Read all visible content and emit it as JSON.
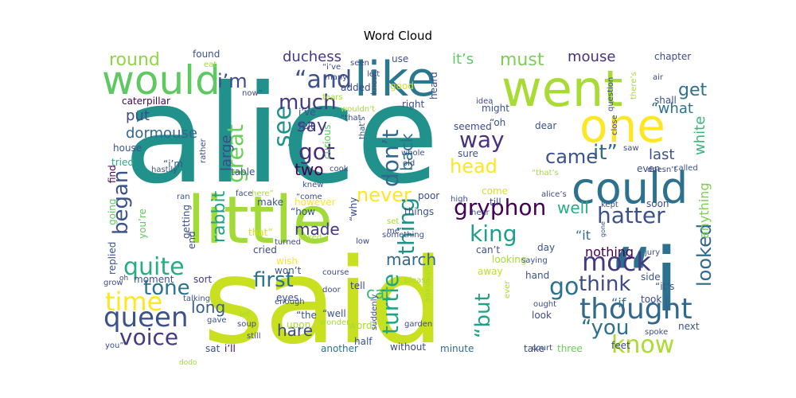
{
  "chart_data": {
    "type": "wordcloud",
    "title": "Word Cloud",
    "palette": [
      "#440154",
      "#46327e",
      "#365c8d",
      "#277f8e",
      "#1fa187",
      "#4ac16d",
      "#a0da39",
      "#d1e231",
      "#fde725"
    ],
    "words": [
      {
        "text": "alice",
        "weight": 100,
        "color": "#21918c"
      },
      {
        "text": "said",
        "weight": 90,
        "color": "#c8e020"
      },
      {
        "text": "little",
        "weight": 55,
        "color": "#a2da37"
      },
      {
        "text": "“i",
        "weight": 52,
        "color": "#2c728e"
      },
      {
        "text": "went",
        "weight": 42,
        "color": "#a8db34"
      },
      {
        "text": "like",
        "weight": 40,
        "color": "#2a788e"
      },
      {
        "text": "one",
        "weight": 38,
        "color": "#fde725"
      },
      {
        "text": "could",
        "weight": 36,
        "color": "#2c728e"
      },
      {
        "text": "would",
        "weight": 33,
        "color": "#5ec962"
      },
      {
        "text": "thought",
        "weight": 24,
        "color": "#31688e"
      },
      {
        "text": "queen",
        "weight": 23,
        "color": "#3b528b"
      },
      {
        "text": "know",
        "weight": 22,
        "color": "#addc30"
      },
      {
        "text": "mock",
        "weight": 21,
        "color": "#443983"
      },
      {
        "text": "time",
        "weight": 21,
        "color": "#fde725"
      },
      {
        "text": "quite",
        "weight": 21,
        "color": "#27ad81"
      },
      {
        "text": "“and",
        "weight": 20,
        "color": "#3b528b"
      },
      {
        "text": "see",
        "weight": 20,
        "color": "#21918c"
      },
      {
        "text": "got",
        "weight": 19,
        "color": "#472d7b"
      },
      {
        "text": "king",
        "weight": 19,
        "color": "#1f9e89"
      },
      {
        "text": "go",
        "weight": 19,
        "color": "#2c728e"
      },
      {
        "text": "voice",
        "weight": 19,
        "color": "#443983"
      },
      {
        "text": "“you",
        "weight": 18,
        "color": "#2c728e"
      },
      {
        "text": "hatter",
        "weight": 18,
        "color": "#3b528b"
      },
      {
        "text": "great",
        "weight": 18,
        "color": "#6ccd5a"
      },
      {
        "text": "gryphon",
        "weight": 18,
        "color": "#440154"
      },
      {
        "text": "way",
        "weight": 18,
        "color": "#46327e"
      },
      {
        "text": "turtle",
        "weight": 18,
        "color": "#20a486"
      },
      {
        "text": "thing",
        "weight": 18,
        "color": "#21918c"
      },
      {
        "text": "don’t",
        "weight": 18,
        "color": "#31688e"
      },
      {
        "text": "head",
        "weight": 17,
        "color": "#fde725"
      },
      {
        "text": "first",
        "weight": 17,
        "color": "#2c728e"
      },
      {
        "text": "think",
        "weight": 17,
        "color": "#3e4a89"
      },
      {
        "text": "“but",
        "weight": 17,
        "color": "#1fa187"
      },
      {
        "text": "it”",
        "weight": 16,
        "color": "#30698e"
      },
      {
        "text": "looked",
        "weight": 16,
        "color": "#31688e"
      },
      {
        "text": "tone",
        "weight": 16,
        "color": "#2c728e"
      },
      {
        "text": "began",
        "weight": 16,
        "color": "#3b528b"
      },
      {
        "text": "much",
        "weight": 16,
        "color": "#443983"
      },
      {
        "text": "came",
        "weight": 15,
        "color": "#3b528b"
      },
      {
        "text": "never",
        "weight": 15,
        "color": "#fde725"
      },
      {
        "text": "must",
        "weight": 15,
        "color": "#7ad151"
      },
      {
        "text": "round",
        "weight": 15,
        "color": "#90d743"
      },
      {
        "text": "say",
        "weight": 15,
        "color": "#443983"
      },
      {
        "text": "rabbit",
        "weight": 15,
        "color": "#20a486"
      },
      {
        "text": "get",
        "weight": 14,
        "color": "#2c728e"
      },
      {
        "text": "i’m",
        "weight": 14,
        "color": "#3e4a89"
      },
      {
        "text": "dormouse",
        "weight": 13,
        "color": "#31688e"
      },
      {
        "text": "put",
        "weight": 13,
        "color": "#3e4a89"
      },
      {
        "text": "well",
        "weight": 13,
        "color": "#27ad81"
      },
      {
        "text": "cat",
        "weight": 13,
        "color": "#35b779"
      },
      {
        "text": "made",
        "weight": 13,
        "color": "#443983"
      },
      {
        "text": "march",
        "weight": 13,
        "color": "#31688e"
      },
      {
        "text": "hare",
        "weight": 13,
        "color": "#3e4a89"
      },
      {
        "text": "long",
        "weight": 13,
        "color": "#355f8d"
      },
      {
        "text": "two",
        "weight": 13,
        "color": "#440154"
      },
      {
        "text": "back",
        "weight": 13,
        "color": "#2c728e"
      },
      {
        "text": "white",
        "weight": 13,
        "color": "#35b779"
      },
      {
        "text": "“what",
        "weight": 13,
        "color": "#2c728e"
      },
      {
        "text": "duchess",
        "weight": 12,
        "color": "#443983"
      },
      {
        "text": "mouse",
        "weight": 12,
        "color": "#46327e"
      },
      {
        "text": "large",
        "weight": 12,
        "color": "#3e4a89"
      },
      {
        "text": "last",
        "weight": 12,
        "color": "#3b528b"
      },
      {
        "text": "it’s",
        "weight": 12,
        "color": "#5ec962"
      },
      {
        "text": "anything",
        "weight": 12,
        "color": "#7ad151"
      },
      {
        "text": "nothing",
        "weight": 12,
        "color": "#440154"
      },
      {
        "text": "“it",
        "weight": 12,
        "color": "#31688e"
      },
      {
        "text": "“if",
        "weight": 11,
        "color": "#2c728e"
      },
      {
        "text": "chapter",
        "weight": 9,
        "color": "#3e4a89"
      },
      {
        "text": "caterpillar",
        "weight": 9,
        "color": "#440154"
      },
      {
        "text": "found",
        "weight": 9,
        "color": "#3b528b"
      },
      {
        "text": "house",
        "weight": 9,
        "color": "#3b528b"
      },
      {
        "text": "tried",
        "weight": 9,
        "color": "#27ad81"
      },
      {
        "text": "going",
        "weight": 9,
        "color": "#5ec962"
      },
      {
        "text": "find",
        "weight": 9,
        "color": "#440154"
      },
      {
        "text": "replied",
        "weight": 9,
        "color": "#3b528b"
      },
      {
        "text": "moment",
        "weight": 9,
        "color": "#3b528b"
      },
      {
        "text": "sort",
        "weight": 9,
        "color": "#443983"
      },
      {
        "text": "talking",
        "weight": 9,
        "color": "#3b528b"
      },
      {
        "text": "sat",
        "weight": 9,
        "color": "#3b528b"
      },
      {
        "text": "i’ll",
        "weight": 9,
        "color": "#440154"
      },
      {
        "text": "another",
        "weight": 9,
        "color": "#2c728e"
      },
      {
        "text": "without",
        "weight": 9,
        "color": "#3e4a89"
      },
      {
        "text": "minute",
        "weight": 9,
        "color": "#31688e"
      },
      {
        "text": "take",
        "weight": 9,
        "color": "#3e4a89"
      },
      {
        "text": "three",
        "weight": 9,
        "color": "#6ccd5a"
      },
      {
        "text": "feet",
        "weight": 9,
        "color": "#3e4a89"
      },
      {
        "text": "next",
        "weight": 9,
        "color": "#3b528b"
      },
      {
        "text": "took",
        "weight": 9,
        "color": "#3e4a89"
      },
      {
        "text": "side",
        "weight": 9,
        "color": "#3b528b"
      },
      {
        "text": "day",
        "weight": 9,
        "color": "#3b528b"
      },
      {
        "text": "looking",
        "weight": 9,
        "color": "#a8db34"
      },
      {
        "text": "things",
        "weight": 9,
        "color": "#3b528b"
      },
      {
        "text": "can’t",
        "weight": 9,
        "color": "#3b528b"
      },
      {
        "text": "away",
        "weight": 9,
        "color": "#bddf26"
      },
      {
        "text": "hand",
        "weight": 9,
        "color": "#3b528b"
      },
      {
        "text": "look",
        "weight": 9,
        "color": "#3e4a89"
      },
      {
        "text": "half",
        "weight": 9,
        "color": "#3b528b"
      },
      {
        "text": "words",
        "weight": 9,
        "color": "#a8db34"
      },
      {
        "text": "tell",
        "weight": 9,
        "color": "#3e4a89"
      },
      {
        "text": "upon",
        "weight": 9,
        "color": "#a8db34"
      },
      {
        "text": "eyes",
        "weight": 9,
        "color": "#3e4a89"
      },
      {
        "text": "wish",
        "weight": 9,
        "color": "#fde725"
      },
      {
        "text": "won’t",
        "weight": 9,
        "color": "#3b528b"
      },
      {
        "text": "cried",
        "weight": 9,
        "color": "#3e4a89"
      },
      {
        "text": "that”",
        "weight": 9,
        "color": "#d8e219"
      },
      {
        "text": "make",
        "weight": 9,
        "color": "#3b528b"
      },
      {
        "text": "however",
        "weight": 9,
        "color": "#fde725"
      },
      {
        "text": "“how",
        "weight": 9,
        "color": "#3b528b"
      },
      {
        "text": "“why",
        "weight": 9,
        "color": "#3e4a89"
      },
      {
        "text": "poor",
        "weight": 9,
        "color": "#3e4a89"
      },
      {
        "text": "till",
        "weight": 9,
        "color": "#3e4a89"
      },
      {
        "text": "come",
        "weight": 9,
        "color": "#d8e219"
      },
      {
        "text": "table",
        "weight": 9,
        "color": "#3b528b"
      },
      {
        "text": "you’re",
        "weight": 9,
        "color": "#5ec962"
      },
      {
        "text": "getting",
        "weight": 9,
        "color": "#3b528b"
      },
      {
        "text": "end",
        "weight": 9,
        "color": "#3e4a89"
      },
      {
        "text": "“i’m",
        "weight": 9,
        "color": "#3b528b"
      },
      {
        "text": "hastily",
        "weight": 8,
        "color": "#3b528b"
      },
      {
        "text": "rather",
        "weight": 8,
        "color": "#3e4a89"
      },
      {
        "text": "felt",
        "weight": 9,
        "color": "#3e4a89"
      },
      {
        "text": "i’ve",
        "weight": 9,
        "color": "#3b528b"
      },
      {
        "text": "curious",
        "weight": 9,
        "color": "#5ec962"
      },
      {
        "text": "that’s",
        "weight": 8,
        "color": "#3b528b"
      },
      {
        "text": "seemed",
        "weight": 9,
        "color": "#3e4a89"
      },
      {
        "text": "“oh",
        "weight": 9,
        "color": "#3b528b"
      },
      {
        "text": "sure",
        "weight": 9,
        "color": "#3b528b"
      },
      {
        "text": "dear",
        "weight": 9,
        "color": "#3b528b"
      },
      {
        "text": "might",
        "weight": 9,
        "color": "#3b528b"
      },
      {
        "text": "heard",
        "weight": 9,
        "color": "#3e4a89"
      },
      {
        "text": "added",
        "weight": 9,
        "color": "#3e4a89"
      },
      {
        "text": "right",
        "weight": 9,
        "color": "#3b528b"
      },
      {
        "text": "good",
        "weight": 9,
        "color": "#d8e219"
      },
      {
        "text": "use",
        "weight": 9,
        "color": "#3b528b"
      },
      {
        "text": "shall",
        "weight": 9,
        "color": "#3b528b"
      },
      {
        "text": "even",
        "weight": 9,
        "color": "#3b528b"
      },
      {
        "text": "soon",
        "weight": 9,
        "color": "#3b528b"
      },
      {
        "text": "“it’s",
        "weight": 9,
        "color": "#3b528b"
      },
      {
        "text": "“the",
        "weight": 9,
        "color": "#3b528b"
      },
      {
        "text": "“well",
        "weight": 9,
        "color": "#3b528b"
      },
      {
        "text": "“that’s",
        "weight": 7,
        "color": "#a8db34"
      },
      {
        "text": "question",
        "weight": 7,
        "color": "#3e4a89"
      },
      {
        "text": "there’s",
        "weight": 7,
        "color": "#a8db34"
      },
      {
        "text": "air",
        "weight": 7,
        "color": "#3e4a89"
      },
      {
        "text": "close",
        "weight": 7,
        "color": "#3e4a89"
      },
      {
        "text": "saw",
        "weight": 7,
        "color": "#3e4a89"
      },
      {
        "text": "doesn’t",
        "weight": 7,
        "color": "#3e4a89"
      },
      {
        "text": "called",
        "weight": 7,
        "color": "#3b528b"
      },
      {
        "text": "alice’s",
        "weight": 7,
        "color": "#3e4a89"
      },
      {
        "text": "high",
        "weight": 7,
        "color": "#3b528b"
      },
      {
        "text": "hear",
        "weight": 7,
        "color": "#3e4a89"
      },
      {
        "text": "kept",
        "weight": 7,
        "color": "#3b528b"
      },
      {
        "text": "gone",
        "weight": 6,
        "color": "#3b528b"
      },
      {
        "text": "jury",
        "weight": 7,
        "color": "#3b528b"
      },
      {
        "text": "saying",
        "weight": 7,
        "color": "#3b528b"
      },
      {
        "text": "ought",
        "weight": 7,
        "color": "#3e4a89"
      },
      {
        "text": "ever",
        "weight": 7,
        "color": "#a8db34"
      },
      {
        "text": "spoke",
        "weight": 7,
        "color": "#3e4a89"
      },
      {
        "text": "court",
        "weight": 7,
        "color": "#3e4a89"
      },
      {
        "text": "garden",
        "weight": 7,
        "color": "#3e4a89"
      },
      {
        "text": "suddenly",
        "weight": 7,
        "color": "#3e4a89"
      },
      {
        "text": "anxiously",
        "weight": 7,
        "color": "#a8db34"
      },
      {
        "text": "please",
        "weight": 7,
        "color": "#a8db34"
      },
      {
        "text": "course",
        "weight": 7,
        "color": "#3e4a89"
      },
      {
        "text": "door",
        "weight": 7,
        "color": "#3e4a89"
      },
      {
        "text": "wonder",
        "weight": 7,
        "color": "#a8db34"
      },
      {
        "text": "still",
        "weight": 7,
        "color": "#3e4a89"
      },
      {
        "text": "soup",
        "weight": 7,
        "color": "#3e4a89"
      },
      {
        "text": "let",
        "weight": 7,
        "color": "#a8db34"
      },
      {
        "text": "gave",
        "weight": 7,
        "color": "#3b528b"
      },
      {
        "text": "enough",
        "weight": 7,
        "color": "#3b528b"
      },
      {
        "text": "turned",
        "weight": 7,
        "color": "#3e4a89"
      },
      {
        "text": "asked",
        "weight": 7,
        "color": "#a8db34"
      },
      {
        "text": "low",
        "weight": 7,
        "color": "#3e4a89"
      },
      {
        "text": "something",
        "weight": 7,
        "color": "#3e4a89"
      },
      {
        "text": "set",
        "weight": 7,
        "color": "#a8db34"
      },
      {
        "text": "me”",
        "weight": 7,
        "color": "#3e4a89"
      },
      {
        "text": "knew",
        "weight": 7,
        "color": "#3b528b"
      },
      {
        "text": "“come",
        "weight": 7,
        "color": "#3e4a89"
      },
      {
        "text": "face",
        "weight": 7,
        "color": "#3e4a89"
      },
      {
        "text": "here”",
        "weight": 7,
        "color": "#a8db34"
      },
      {
        "text": "ran",
        "weight": 7,
        "color": "#3b528b"
      },
      {
        "text": "cook",
        "weight": 7,
        "color": "#3e4a89"
      },
      {
        "text": "old",
        "weight": 7,
        "color": "#3e4a89"
      },
      {
        "text": "whole",
        "weight": 7,
        "color": "#3e4a89"
      },
      {
        "text": "idea",
        "weight": 7,
        "color": "#3e4a89"
      },
      {
        "text": "wouldn’t",
        "weight": 7,
        "color": "#a8db34"
      },
      {
        "text": "“that",
        "weight": 7,
        "color": "#3e4a89"
      },
      {
        "text": "now”",
        "weight": 7,
        "color": "#3e4a89"
      },
      {
        "text": "many",
        "weight": 7,
        "color": "#3e4a89"
      },
      {
        "text": "“i’ve",
        "weight": 7,
        "color": "#3e4a89"
      },
      {
        "text": "tears",
        "weight": 6,
        "color": "#a8db34"
      },
      {
        "text": "seen",
        "weight": 6,
        "color": "#3e4a89"
      },
      {
        "text": "left",
        "weight": 6,
        "color": "#3e4a89"
      },
      {
        "text": "know”",
        "weight": 7,
        "color": "#3e4a89"
      },
      {
        "text": "eat",
        "weight": 7,
        "color": "#a8db34"
      },
      {
        "text": "grow",
        "weight": 7,
        "color": "#3e4a89"
      },
      {
        "text": "oh",
        "weight": 6,
        "color": "#3e4a89"
      },
      {
        "text": "dodo",
        "weight": 7,
        "color": "#a8db34"
      },
      {
        "text": "you”",
        "weight": 7,
        "color": "#3e4a89"
      }
    ]
  }
}
